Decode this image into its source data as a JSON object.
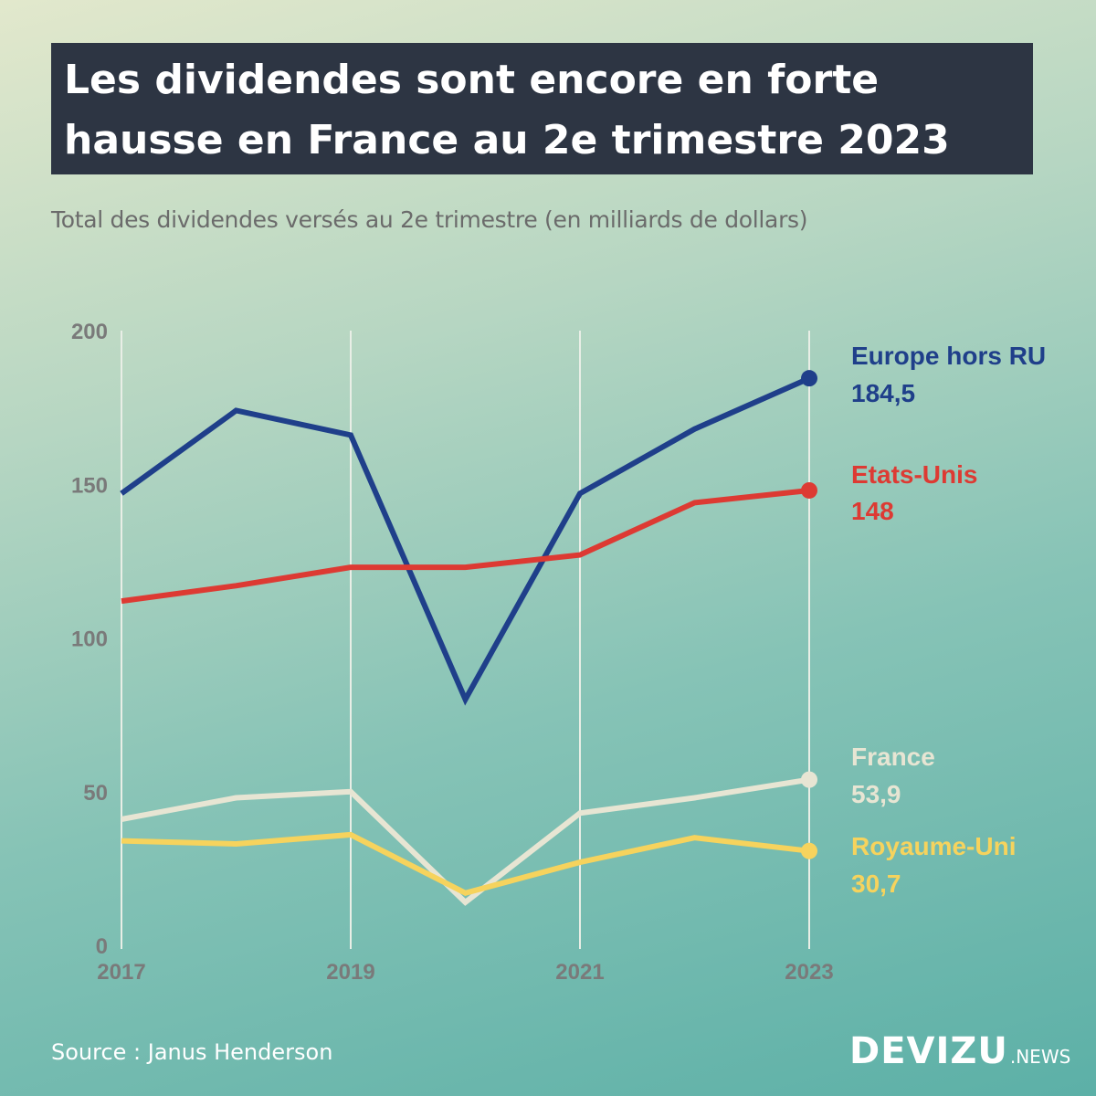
{
  "header": {
    "title_line1": "Les dividendes sont encore en forte",
    "title_line2": "hausse en France au 2e trimestre 2023",
    "subtitle": "Total des dividendes versés au 2e trimestre (en milliards de dollars)"
  },
  "footer": {
    "source": "Source : Janus Henderson",
    "brand_main": "DEVIZU",
    "brand_suffix": ".NEWS"
  },
  "colors": {
    "axis_text": "#7a7a7a",
    "gridline": "#e9eee6"
  },
  "chart_data": {
    "type": "line",
    "title": "Les dividendes sont encore en forte hausse en France au 2e trimestre 2023",
    "subtitle": "Total des dividendes versés au 2e trimestre (en milliards de dollars)",
    "x": [
      2017,
      2018,
      2019,
      2020,
      2021,
      2022,
      2023
    ],
    "xticks": [
      "2017",
      "2019",
      "2021",
      "2023"
    ],
    "yticks": [
      "0",
      "50",
      "100",
      "150",
      "200"
    ],
    "ylim": [
      0,
      200
    ],
    "xlim": [
      2017,
      2023
    ],
    "grid": "vertical",
    "legend": "direct labels at right end of lines",
    "series": [
      {
        "name": "Europe hors RU",
        "color": "#1f3f8a",
        "values": [
          147,
          174,
          166,
          80,
          147,
          168,
          184.5
        ],
        "end_label": "184,5"
      },
      {
        "name": "Etats-Unis",
        "color": "#dd3a33",
        "values": [
          112,
          117,
          123,
          123,
          127,
          144,
          148
        ],
        "end_label": "148"
      },
      {
        "name": "France",
        "color": "#e7e5d3",
        "values": [
          41,
          48,
          50,
          14,
          43,
          48,
          53.9
        ],
        "end_label": "53,9"
      },
      {
        "name": "Royaume-Uni",
        "color": "#f6d35d",
        "values": [
          34,
          33,
          36,
          17,
          27,
          35,
          30.7
        ],
        "end_label": "30,7"
      }
    ]
  }
}
